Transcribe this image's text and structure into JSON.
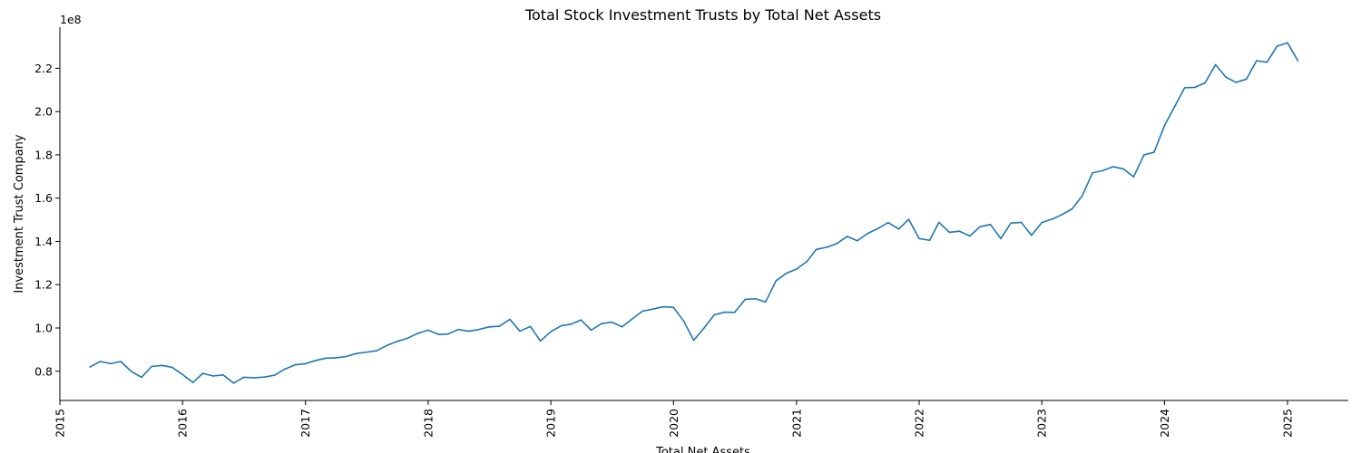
{
  "chart_data": {
    "type": "line",
    "title": "Total Stock Investment Trusts by Total Net Assets",
    "xlabel": "Total Net Assets",
    "ylabel": "Investment Trust Company",
    "y_scale_label": "1e8",
    "xlim": [
      "2015-01-01",
      "2025-07-01"
    ],
    "ylim": [
      0.665,
      2.39
    ],
    "x_ticks": [
      {
        "date": "2015-01-01",
        "label": "2015"
      },
      {
        "date": "2016-01-01",
        "label": "2016"
      },
      {
        "date": "2017-01-01",
        "label": "2017"
      },
      {
        "date": "2018-01-01",
        "label": "2018"
      },
      {
        "date": "2019-01-01",
        "label": "2019"
      },
      {
        "date": "2020-01-01",
        "label": "2020"
      },
      {
        "date": "2021-01-01",
        "label": "2021"
      },
      {
        "date": "2022-01-01",
        "label": "2022"
      },
      {
        "date": "2023-01-01",
        "label": "2023"
      },
      {
        "date": "2024-01-01",
        "label": "2024"
      },
      {
        "date": "2025-01-01",
        "label": "2025"
      }
    ],
    "y_ticks": [
      {
        "value": 0.8,
        "label": "0.8"
      },
      {
        "value": 1.0,
        "label": "1.0"
      },
      {
        "value": 1.2,
        "label": "1.2"
      },
      {
        "value": 1.4,
        "label": "1.4"
      },
      {
        "value": 1.6,
        "label": "1.6"
      },
      {
        "value": 1.8,
        "label": "1.8"
      },
      {
        "value": 2.0,
        "label": "2.0"
      },
      {
        "value": 2.2,
        "label": "2.2"
      }
    ],
    "line_color": "#1f77b4",
    "series": [
      {
        "x": [
          "2015-04-01",
          "2015-05-01",
          "2015-06-01",
          "2015-07-01",
          "2015-08-01",
          "2015-09-01",
          "2015-10-01",
          "2015-11-01",
          "2015-12-01",
          "2016-01-01",
          "2016-02-01",
          "2016-03-01",
          "2016-04-01",
          "2016-05-01",
          "2016-06-01",
          "2016-07-01",
          "2016-08-01",
          "2016-09-01",
          "2016-10-01",
          "2016-11-01",
          "2016-12-01",
          "2017-01-01",
          "2017-02-01",
          "2017-03-01",
          "2017-04-01",
          "2017-05-01",
          "2017-06-01",
          "2017-07-01",
          "2017-08-01",
          "2017-09-01",
          "2017-10-01",
          "2017-11-01",
          "2017-12-01",
          "2018-01-01",
          "2018-02-01",
          "2018-03-01",
          "2018-04-01",
          "2018-05-01",
          "2018-06-01",
          "2018-07-01",
          "2018-08-01",
          "2018-09-01",
          "2018-10-01",
          "2018-11-01",
          "2018-12-01",
          "2019-01-01",
          "2019-02-01",
          "2019-03-01",
          "2019-04-01",
          "2019-05-01",
          "2019-06-01",
          "2019-07-01",
          "2019-08-01",
          "2019-09-01",
          "2019-10-01",
          "2019-11-01",
          "2019-12-01",
          "2020-01-01",
          "2020-02-01",
          "2020-03-01",
          "2020-04-01",
          "2020-05-01",
          "2020-06-01",
          "2020-07-01",
          "2020-08-01",
          "2020-09-01",
          "2020-10-01",
          "2020-11-01",
          "2020-12-01",
          "2021-01-01",
          "2021-02-01",
          "2021-03-01",
          "2021-04-01",
          "2021-05-01",
          "2021-06-01",
          "2021-07-01",
          "2021-08-01",
          "2021-09-01",
          "2021-10-01",
          "2021-11-01",
          "2021-12-01",
          "2022-01-01",
          "2022-02-01",
          "2022-03-01",
          "2022-04-01",
          "2022-05-01",
          "2022-06-01",
          "2022-07-01",
          "2022-08-01",
          "2022-09-01",
          "2022-10-01",
          "2022-11-01",
          "2022-12-01",
          "2023-01-01",
          "2023-02-01",
          "2023-03-01",
          "2023-04-01",
          "2023-05-01",
          "2023-06-01",
          "2023-07-01",
          "2023-08-01",
          "2023-09-01",
          "2023-10-01",
          "2023-11-01",
          "2023-12-01",
          "2024-01-01",
          "2024-02-01",
          "2024-03-01",
          "2024-04-01",
          "2024-05-01",
          "2024-06-01",
          "2024-07-01",
          "2024-08-01",
          "2024-09-01",
          "2024-10-01",
          "2024-11-01",
          "2024-12-01",
          "2025-01-01",
          "2025-02-01"
        ],
        "y": [
          0.82,
          0.845,
          0.835,
          0.845,
          0.8,
          0.772,
          0.822,
          0.827,
          0.818,
          0.785,
          0.748,
          0.79,
          0.778,
          0.783,
          0.745,
          0.772,
          0.77,
          0.773,
          0.782,
          0.81,
          0.83,
          0.835,
          0.85,
          0.86,
          0.862,
          0.868,
          0.882,
          0.888,
          0.895,
          0.92,
          0.938,
          0.953,
          0.975,
          0.99,
          0.97,
          0.972,
          0.993,
          0.985,
          0.993,
          1.005,
          1.008,
          1.04,
          0.985,
          1.007,
          0.94,
          0.983,
          1.01,
          1.017,
          1.037,
          0.99,
          1.02,
          1.027,
          1.005,
          1.043,
          1.078,
          1.087,
          1.098,
          1.095,
          1.03,
          0.943,
          1.0,
          1.06,
          1.073,
          1.072,
          1.132,
          1.135,
          1.12,
          1.218,
          1.252,
          1.272,
          1.307,
          1.363,
          1.373,
          1.39,
          1.423,
          1.403,
          1.437,
          1.46,
          1.487,
          1.457,
          1.502,
          1.413,
          1.405,
          1.488,
          1.442,
          1.447,
          1.425,
          1.468,
          1.478,
          1.413,
          1.485,
          1.488,
          1.428,
          1.487,
          1.503,
          1.523,
          1.55,
          1.61,
          1.717,
          1.727,
          1.745,
          1.735,
          1.698,
          1.8,
          1.812,
          1.935,
          2.025,
          2.11,
          2.112,
          2.133,
          2.217,
          2.16,
          2.135,
          2.15,
          2.235,
          2.228,
          2.302,
          2.318,
          2.235
        ]
      }
    ]
  }
}
